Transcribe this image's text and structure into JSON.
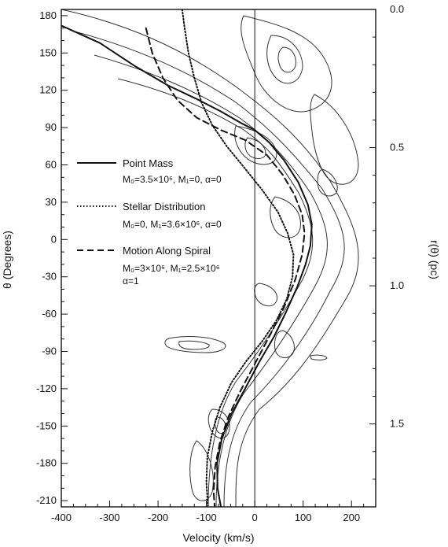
{
  "chart_data": {
    "type": "line",
    "xlabel": "Velocity (km/s)",
    "ylabel_left": "θ (Degrees)",
    "ylabel_right": "r(θ) (pc)",
    "xlim": [
      -400,
      250
    ],
    "ylim_left": [
      -215,
      185
    ],
    "ylim_right": [
      1.8,
      0.0
    ],
    "x_ticks": [
      -400,
      -300,
      -200,
      -100,
      0,
      100,
      200
    ],
    "y_left_ticks": [
      180,
      150,
      120,
      90,
      60,
      30,
      0,
      -30,
      -60,
      -90,
      -120,
      -150,
      -180,
      -210
    ],
    "y_right_ticks": [
      {
        "label": "0.0",
        "r": 0.0
      },
      {
        "label": "0.5",
        "r": 0.5
      },
      {
        "label": "1.0",
        "r": 1.0
      },
      {
        "label": "1.5",
        "r": 1.5
      }
    ],
    "reference_line_x": 0,
    "series": [
      {
        "name": "Point Mass",
        "params": "M₀=3.5×10⁶, M₁=0, α=0",
        "style": "solid",
        "points": [
          [
            -400,
            172
          ],
          [
            -320,
            158
          ],
          [
            -250,
            140
          ],
          [
            -180,
            124
          ],
          [
            -120,
            113
          ],
          [
            -70,
            103
          ],
          [
            -30,
            94
          ],
          [
            0,
            88
          ],
          [
            30,
            78
          ],
          [
            60,
            64
          ],
          [
            90,
            46
          ],
          [
            110,
            28
          ],
          [
            118,
            12
          ],
          [
            115,
            -5
          ],
          [
            105,
            -20
          ],
          [
            88,
            -38
          ],
          [
            65,
            -58
          ],
          [
            40,
            -78
          ],
          [
            10,
            -98
          ],
          [
            -20,
            -120
          ],
          [
            -48,
            -140
          ],
          [
            -68,
            -160
          ],
          [
            -78,
            -180
          ],
          [
            -77,
            -200
          ],
          [
            -70,
            -215
          ]
        ]
      },
      {
        "name": "Stellar Distribution",
        "params": "M₀=0, M₁=3.6×10⁶, α=0",
        "style": "dotted",
        "points": [
          [
            -150,
            185
          ],
          [
            -145,
            170
          ],
          [
            -137,
            150
          ],
          [
            -125,
            130
          ],
          [
            -110,
            110
          ],
          [
            -88,
            92
          ],
          [
            -58,
            75
          ],
          [
            -22,
            58
          ],
          [
            15,
            40
          ],
          [
            48,
            22
          ],
          [
            68,
            5
          ],
          [
            80,
            -12
          ],
          [
            78,
            -30
          ],
          [
            66,
            -48
          ],
          [
            45,
            -65
          ],
          [
            15,
            -82
          ],
          [
            -18,
            -98
          ],
          [
            -48,
            -115
          ],
          [
            -72,
            -135
          ],
          [
            -88,
            -155
          ],
          [
            -98,
            -175
          ],
          [
            -100,
            -195
          ],
          [
            -97,
            -215
          ]
        ]
      },
      {
        "name": "Motion Along Spiral",
        "params": "M₀=3×10⁶, M₁=2.5×10⁶",
        "params2": "α=1",
        "style": "dashed",
        "points": [
          [
            -225,
            170
          ],
          [
            -212,
            150
          ],
          [
            -190,
            130
          ],
          [
            -160,
            112
          ],
          [
            -120,
            98
          ],
          [
            -70,
            88
          ],
          [
            -20,
            80
          ],
          [
            25,
            68
          ],
          [
            58,
            52
          ],
          [
            82,
            36
          ],
          [
            98,
            20
          ],
          [
            103,
            5
          ],
          [
            98,
            -12
          ],
          [
            84,
            -32
          ],
          [
            60,
            -55
          ],
          [
            30,
            -78
          ],
          [
            0,
            -100
          ],
          [
            -30,
            -122
          ],
          [
            -55,
            -143
          ],
          [
            -72,
            -163
          ],
          [
            -82,
            -183
          ],
          [
            -85,
            -203
          ],
          [
            -83,
            -215
          ]
        ]
      }
    ]
  }
}
